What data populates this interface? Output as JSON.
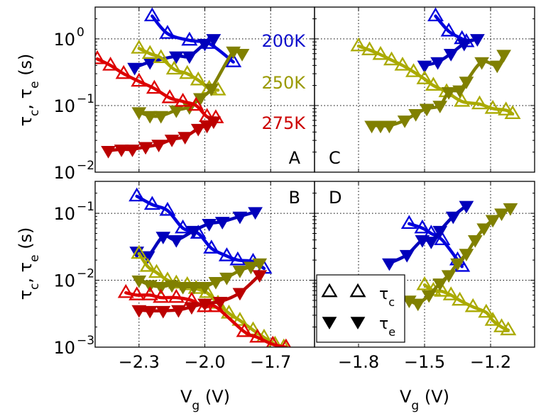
{
  "chart_data": {
    "type": "line",
    "layout": "2x2 panels, log-scale y, markers with smooth fit lines",
    "legend": {
      "position": "lower-left of panel D",
      "entries": [
        {
          "marker": "open-triangle-up",
          "label": "τc"
        },
        {
          "marker": "filled-triangle-down",
          "label": "τe"
        }
      ]
    },
    "colors": {
      "200K": {
        "open": "#0000dd",
        "filled": "#0000bb",
        "label": "#1010cc"
      },
      "250K": {
        "open": "#aaaa00",
        "filled": "#808000",
        "label": "#9a9a00"
      },
      "275K": {
        "open": "#dd0000",
        "filled": "#bb0000",
        "label": "#cc0000"
      }
    },
    "annotations": [
      {
        "panel": "A",
        "text": "200K",
        "color_key": "200K"
      },
      {
        "panel": "A",
        "text": "250K",
        "color_key": "250K"
      },
      {
        "panel": "A",
        "text": "275K",
        "color_key": "275K"
      }
    ],
    "panels": [
      {
        "id": "A",
        "letter": "A",
        "letter_pos": "bottom-right",
        "xlim": [
          -2.5,
          -1.5
        ],
        "ylim": [
          0.01,
          3
        ],
        "yscale": "log",
        "xticks": [
          -2.3,
          -2.0,
          -1.7
        ],
        "xtick_labels": [
          "",
          "",
          ""
        ],
        "yticks": [
          0.01,
          0.1,
          1
        ],
        "ytick_labels": [
          [
            "10",
            "−2"
          ],
          [
            "10",
            "−1"
          ],
          [
            "10",
            "0"
          ]
        ],
        "ylabel": "τc, τe (s)",
        "xlabel": "",
        "series": [
          {
            "name": "200K τc",
            "temp": "200K",
            "kind": "open",
            "x": [
              -2.24,
              -2.17,
              -2.07,
              -1.98,
              -1.87
            ],
            "y": [
              2.2,
              1.2,
              0.95,
              0.85,
              0.45
            ]
          },
          {
            "name": "200K τe",
            "temp": "200K",
            "kind": "filled",
            "x": [
              -2.32,
              -2.25,
              -2.13,
              -2.07,
              -2.0,
              -1.96
            ],
            "y": [
              0.37,
              0.45,
              0.55,
              0.55,
              0.85,
              1.0
            ]
          },
          {
            "name": "250K τc",
            "temp": "250K",
            "kind": "open",
            "x": [
              -2.3,
              -2.25,
              -2.2,
              -2.14,
              -2.08,
              -2.03,
              -1.98,
              -1.94
            ],
            "y": [
              0.72,
              0.6,
              0.52,
              0.35,
              0.3,
              0.24,
              0.18,
              0.17
            ]
          },
          {
            "name": "250K τe",
            "temp": "250K",
            "kind": "filled",
            "x": [
              -2.3,
              -2.25,
              -2.2,
              -2.13,
              -2.07,
              -2.02,
              -1.97,
              -1.87,
              -1.83
            ],
            "y": [
              0.08,
              0.07,
              0.07,
              0.085,
              0.095,
              0.13,
              0.18,
              0.65,
              0.6
            ]
          },
          {
            "name": "275K τc",
            "temp": "275K",
            "kind": "open",
            "x": [
              -2.49,
              -2.43,
              -2.37,
              -2.3,
              -2.23,
              -2.16,
              -2.1,
              -2.04,
              -1.99,
              -1.95
            ],
            "y": [
              0.5,
              0.4,
              0.3,
              0.23,
              0.18,
              0.13,
              0.115,
              0.1,
              0.068,
              0.065
            ]
          },
          {
            "name": "275K τe",
            "temp": "275K",
            "kind": "filled",
            "x": [
              -2.44,
              -2.38,
              -2.33,
              -2.27,
              -2.21,
              -2.15,
              -2.09,
              -2.03,
              -1.99,
              -1.96
            ],
            "y": [
              0.021,
              0.022,
              0.022,
              0.024,
              0.026,
              0.031,
              0.034,
              0.045,
              0.05,
              0.058
            ]
          }
        ]
      },
      {
        "id": "C",
        "letter": "C",
        "letter_pos": "bottom-left",
        "xlim": [
          -2.0,
          -1.0
        ],
        "ylim": [
          0.01,
          3
        ],
        "yscale": "log",
        "xticks": [
          -1.8,
          -1.5,
          -1.2
        ],
        "xtick_labels": [
          "",
          "",
          ""
        ],
        "yticks": [
          0.01,
          0.1,
          1
        ],
        "ytick_labels": [
          "",
          "",
          ""
        ],
        "series": [
          {
            "name": "200K τc",
            "temp": "200K",
            "kind": "open",
            "x": [
              -1.45,
              -1.39,
              -1.33,
              -1.31
            ],
            "y": [
              2.2,
              1.3,
              1.0,
              0.9
            ]
          },
          {
            "name": "200K τe",
            "temp": "200K",
            "kind": "filled",
            "x": [
              -1.5,
              -1.44,
              -1.38,
              -1.32,
              -1.26
            ],
            "y": [
              0.4,
              0.45,
              0.6,
              0.85,
              1.0
            ]
          },
          {
            "name": "250K τc",
            "temp": "250K",
            "kind": "open",
            "x": [
              -1.8,
              -1.75,
              -1.7,
              -1.65,
              -1.6,
              -1.55,
              -1.5,
              -1.46,
              -1.4,
              -1.33,
              -1.25,
              -1.19,
              -1.13,
              -1.1
            ],
            "y": [
              0.78,
              0.68,
              0.58,
              0.48,
              0.4,
              0.32,
              0.25,
              0.2,
              0.16,
              0.115,
              0.105,
              0.09,
              0.085,
              0.075
            ]
          },
          {
            "name": "250K τe",
            "temp": "250K",
            "kind": "filled",
            "x": [
              -1.74,
              -1.7,
              -1.66,
              -1.59,
              -1.54,
              -1.49,
              -1.43,
              -1.39,
              -1.34,
              -1.31,
              -1.24,
              -1.17,
              -1.14
            ],
            "y": [
              0.05,
              0.05,
              0.05,
              0.06,
              0.075,
              0.09,
              0.1,
              0.16,
              0.17,
              0.23,
              0.45,
              0.4,
              0.58
            ]
          }
        ]
      },
      {
        "id": "B",
        "letter": "B",
        "letter_pos": "top-right",
        "xlim": [
          -2.5,
          -1.5
        ],
        "ylim": [
          0.001,
          0.3
        ],
        "yscale": "log",
        "xticks": [
          -2.3,
          -2.0,
          -1.7
        ],
        "xtick_labels": [
          "−2.3",
          "−2.0",
          "−1.7"
        ],
        "yticks": [
          0.001,
          0.01,
          0.1
        ],
        "ytick_labels": [
          [
            "10",
            "−3"
          ],
          [
            "10",
            "−2"
          ],
          [
            "10",
            "−1"
          ]
        ],
        "ylabel": "τc, τe (s)",
        "xlabel": "Vg (V)",
        "series": [
          {
            "name": "200K τc",
            "temp": "200K",
            "kind": "open",
            "x": [
              -2.31,
              -2.24,
              -2.17,
              -2.1,
              -2.03,
              -1.97,
              -1.9,
              -1.85,
              -1.78,
              -1.73
            ],
            "y": [
              0.18,
              0.135,
              0.11,
              0.06,
              0.05,
              0.03,
              0.023,
              0.02,
              0.019,
              0.015
            ]
          },
          {
            "name": "200K τe",
            "temp": "200K",
            "kind": "filled",
            "x": [
              -2.31,
              -2.26,
              -2.19,
              -2.13,
              -2.05,
              -1.98,
              -1.92,
              -1.84,
              -1.77
            ],
            "y": [
              0.027,
              0.023,
              0.045,
              0.04,
              0.055,
              0.07,
              0.075,
              0.09,
              0.105
            ]
          },
          {
            "name": "250K τc",
            "temp": "250K",
            "kind": "open",
            "x": [
              -2.3,
              -2.26,
              -2.22,
              -2.17,
              -2.13,
              -2.08,
              -2.04,
              -1.99,
              -1.94,
              -1.89,
              -1.84,
              -1.78,
              -1.73,
              -1.68,
              -1.64
            ],
            "y": [
              0.025,
              0.016,
              0.013,
              0.01,
              0.009,
              0.0085,
              0.0075,
              0.0065,
              0.0045,
              0.0032,
              0.0025,
              0.0018,
              0.0014,
              0.0011,
              0.001
            ]
          },
          {
            "name": "250K τe",
            "temp": "250K",
            "kind": "filled",
            "x": [
              -2.3,
              -2.25,
              -2.2,
              -2.15,
              -2.1,
              -2.05,
              -2.0,
              -1.95,
              -1.9,
              -1.84,
              -1.79,
              -1.75
            ],
            "y": [
              0.01,
              0.0085,
              0.008,
              0.0085,
              0.008,
              0.008,
              0.008,
              0.0095,
              0.011,
              0.014,
              0.016,
              0.018
            ]
          },
          {
            "name": "275K τc",
            "temp": "275K",
            "kind": "open",
            "x": [
              -2.36,
              -2.31,
              -2.25,
              -2.2,
              -2.13,
              -2.06,
              -2.0,
              -1.95,
              -1.82,
              -1.76,
              -1.69,
              -1.63
            ],
            "y": [
              0.0065,
              0.006,
              0.006,
              0.0055,
              0.0055,
              0.005,
              0.004,
              0.004,
              0.0017,
              0.0014,
              0.0011,
              0.001
            ]
          },
          {
            "name": "275K τe",
            "temp": "275K",
            "kind": "filled",
            "x": [
              -2.3,
              -2.25,
              -2.19,
              -2.12,
              -2.06,
              -2.0,
              -1.93,
              -1.84,
              -1.75
            ],
            "y": [
              0.0036,
              0.0035,
              0.0035,
              0.0036,
              0.004,
              0.0045,
              0.0048,
              0.0065,
              0.012
            ]
          }
        ]
      },
      {
        "id": "D",
        "letter": "D",
        "letter_pos": "top-left",
        "xlim": [
          -2.0,
          -1.0
        ],
        "ylim": [
          0.001,
          0.3
        ],
        "yscale": "log",
        "xticks": [
          -1.8,
          -1.5,
          -1.2
        ],
        "xtick_labels": [
          "−1.8",
          "−1.5",
          "−1.2"
        ],
        "yticks": [
          0.001,
          0.01,
          0.1
        ],
        "ytick_labels": [
          "",
          "",
          ""
        ],
        "xlabel": "Vg (V)",
        "series": [
          {
            "name": "200K τc",
            "temp": "200K",
            "kind": "open",
            "x": [
              -1.57,
              -1.51,
              -1.47,
              -1.42,
              -1.35,
              -1.33
            ],
            "y": [
              0.07,
              0.06,
              0.05,
              0.04,
              0.02,
              0.016
            ]
          },
          {
            "name": "200K τe",
            "temp": "200K",
            "kind": "filled",
            "x": [
              -1.66,
              -1.58,
              -1.51,
              -1.47,
              -1.43,
              -1.37,
              -1.31
            ],
            "y": [
              0.018,
              0.024,
              0.04,
              0.038,
              0.055,
              0.09,
              0.13
            ]
          },
          {
            "name": "250K τc",
            "temp": "250K",
            "kind": "open",
            "x": [
              -1.5,
              -1.46,
              -1.42,
              -1.38,
              -1.34,
              -1.28,
              -1.22,
              -1.19,
              -1.15,
              -1.12
            ],
            "y": [
              0.0085,
              0.007,
              0.0068,
              0.006,
              0.005,
              0.004,
              0.0033,
              0.0025,
              0.002,
              0.0018
            ]
          },
          {
            "name": "250K τe",
            "temp": "250K",
            "kind": "filled",
            "x": [
              -1.57,
              -1.53,
              -1.48,
              -1.43,
              -1.39,
              -1.35,
              -1.31,
              -1.27,
              -1.23,
              -1.19,
              -1.15,
              -1.11
            ],
            "y": [
              0.005,
              0.0045,
              0.006,
              0.009,
              0.012,
              0.018,
              0.025,
              0.04,
              0.06,
              0.08,
              0.1,
              0.12
            ]
          }
        ]
      }
    ]
  }
}
